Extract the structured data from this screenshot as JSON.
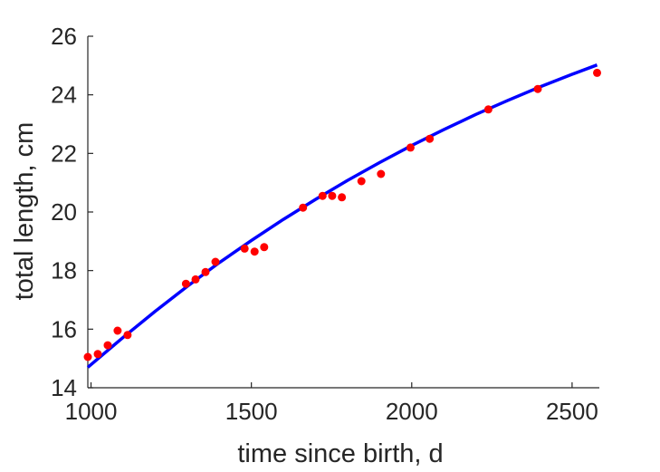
{
  "chart_data": {
    "type": "scatter",
    "title": "",
    "xlabel": "time since birth, d",
    "ylabel": "total length, cm",
    "xlim": [
      990,
      2585
    ],
    "ylim": [
      14,
      26
    ],
    "xticks": [
      1000,
      1500,
      2000,
      2500
    ],
    "yticks": [
      14,
      16,
      18,
      20,
      22,
      24,
      26
    ],
    "grid": false,
    "legend": "none",
    "colors": {
      "points": "#ff0000",
      "fit": "#0000ff",
      "axis": "#262626"
    },
    "series": [
      {
        "kind": "scatter",
        "x": [
          990,
          1021,
          1052,
          1083,
          1114,
          1296,
          1326,
          1357,
          1388,
          1479,
          1510,
          1540,
          1661,
          1722,
          1752,
          1782,
          1843,
          1904,
          1996,
          2056,
          2239,
          2393,
          2578
        ],
        "y": [
          15.05,
          15.15,
          15.45,
          15.95,
          15.8,
          17.55,
          17.7,
          17.95,
          18.3,
          18.75,
          18.65,
          18.8,
          20.15,
          20.55,
          20.55,
          20.5,
          21.05,
          21.3,
          22.2,
          22.5,
          23.5,
          24.2,
          24.75
        ]
      },
      {
        "kind": "line",
        "x": [
          990,
          1100,
          1200,
          1300,
          1400,
          1500,
          1600,
          1700,
          1800,
          1900,
          2000,
          2100,
          2200,
          2300,
          2400,
          2500,
          2578
        ],
        "y": [
          14.7,
          15.72,
          16.61,
          17.46,
          18.27,
          19.03,
          19.75,
          20.43,
          21.08,
          21.69,
          22.27,
          22.81,
          23.33,
          23.81,
          24.27,
          24.7,
          25.02
        ]
      }
    ]
  }
}
